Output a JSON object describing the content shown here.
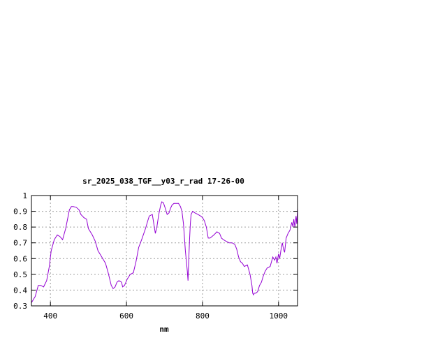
{
  "chart_data": {
    "type": "line",
    "title": "sr_2025_038_TGF__y03_r_rad 17-26-00",
    "xlabel": "nm",
    "ylabel": "",
    "xlim": [
      350,
      1050
    ],
    "ylim": [
      0.3,
      1.0
    ],
    "xticks": [
      400,
      600,
      800,
      1000
    ],
    "xtick_labels": [
      "400",
      "600",
      "800",
      "1000"
    ],
    "yticks": [
      0.3,
      0.4,
      0.5,
      0.6,
      0.7,
      0.8,
      0.9,
      1.0
    ],
    "ytick_labels": [
      "0.3",
      "0.4",
      "0.5",
      "0.6",
      "0.7",
      "0.8",
      "0.9",
      "1"
    ],
    "grid": true,
    "legend": "none",
    "line_color": "#9400d3",
    "series": [
      {
        "x": [
          350,
          360,
          368,
          375,
          382,
          390,
          397,
          402,
          410,
          418,
          425,
          432,
          440,
          445,
          450,
          455,
          460,
          468,
          475,
          480,
          488,
          495,
          500,
          510,
          518,
          525,
          535,
          545,
          552,
          560,
          565,
          570,
          575,
          580,
          587,
          590,
          595,
          602,
          610,
          618,
          625,
          632,
          640,
          650,
          656,
          660,
          668,
          676,
          680,
          685,
          690,
          693,
          697,
          702,
          707,
          712,
          716,
          720,
          725,
          730,
          737,
          742,
          746,
          750,
          755,
          760,
          762,
          764,
          766,
          768,
          770,
          774,
          780,
          788,
          795,
          800,
          805,
          810,
          815,
          820,
          830,
          838,
          845,
          850,
          855,
          862,
          870,
          878,
          885,
          890,
          895,
          900,
          905,
          910,
          918,
          925,
          930,
          932,
          934,
          936,
          940,
          945,
          950,
          955,
          960,
          965,
          970,
          978,
          985,
          990,
          993,
          996,
          1000,
          1003,
          1006,
          1010,
          1013,
          1016,
          1020,
          1025,
          1030,
          1035,
          1038,
          1040,
          1043,
          1046,
          1048,
          1050
        ],
        "y": [
          0.32,
          0.36,
          0.43,
          0.43,
          0.42,
          0.46,
          0.55,
          0.65,
          0.72,
          0.75,
          0.74,
          0.72,
          0.79,
          0.85,
          0.91,
          0.93,
          0.93,
          0.925,
          0.91,
          0.88,
          0.86,
          0.85,
          0.79,
          0.75,
          0.71,
          0.65,
          0.61,
          0.57,
          0.51,
          0.43,
          0.41,
          0.42,
          0.45,
          0.46,
          0.45,
          0.42,
          0.43,
          0.47,
          0.5,
          0.51,
          0.58,
          0.67,
          0.72,
          0.79,
          0.84,
          0.87,
          0.88,
          0.76,
          0.8,
          0.88,
          0.94,
          0.96,
          0.955,
          0.92,
          0.88,
          0.89,
          0.92,
          0.94,
          0.95,
          0.95,
          0.95,
          0.93,
          0.9,
          0.82,
          0.65,
          0.52,
          0.46,
          0.6,
          0.72,
          0.82,
          0.88,
          0.9,
          0.89,
          0.88,
          0.87,
          0.86,
          0.84,
          0.8,
          0.73,
          0.73,
          0.75,
          0.77,
          0.76,
          0.73,
          0.72,
          0.71,
          0.7,
          0.7,
          0.69,
          0.66,
          0.61,
          0.58,
          0.57,
          0.55,
          0.56,
          0.5,
          0.43,
          0.38,
          0.37,
          0.38,
          0.38,
          0.39,
          0.43,
          0.45,
          0.49,
          0.52,
          0.54,
          0.55,
          0.61,
          0.59,
          0.61,
          0.57,
          0.63,
          0.6,
          0.65,
          0.7,
          0.66,
          0.64,
          0.73,
          0.76,
          0.78,
          0.83,
          0.8,
          0.85,
          0.8,
          0.87,
          0.82,
          0.92
        ]
      }
    ]
  }
}
